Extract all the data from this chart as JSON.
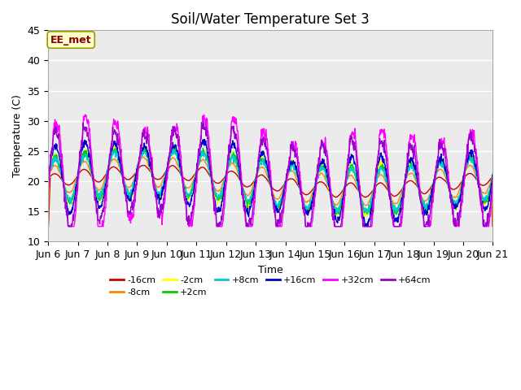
{
  "title": "Soil/Water Temperature Set 3",
  "xlabel": "Time",
  "ylabel": "Temperature (C)",
  "ylim": [
    10,
    45
  ],
  "xlim": [
    0,
    15
  ],
  "background_color": "#ffffff",
  "plot_bg_color": "#ebebeb",
  "series_colors": {
    "-16cm": "#cc0000",
    "-8cm": "#ff8800",
    "-2cm": "#ffff00",
    "+2cm": "#00cc00",
    "+8cm": "#00cccc",
    "+16cm": "#0000cc",
    "+32cm": "#ff00ff",
    "+64cm": "#9900cc"
  },
  "legend_label": "EE_met",
  "n_days": 15,
  "xtick_labels": [
    "Jun 6",
    "Jun 7",
    "Jun 8",
    "Jun 9",
    "Jun 10",
    "Jun 11",
    "Jun 12",
    "Jun 13",
    "Jun 14",
    "Jun 15",
    "Jun 16",
    "Jun 17",
    "Jun 18",
    "Jun 19",
    "Jun 20",
    "Jun 21"
  ],
  "xtick_positions": [
    0,
    1,
    2,
    3,
    4,
    5,
    6,
    7,
    8,
    9,
    10,
    11,
    12,
    13,
    14,
    15
  ]
}
